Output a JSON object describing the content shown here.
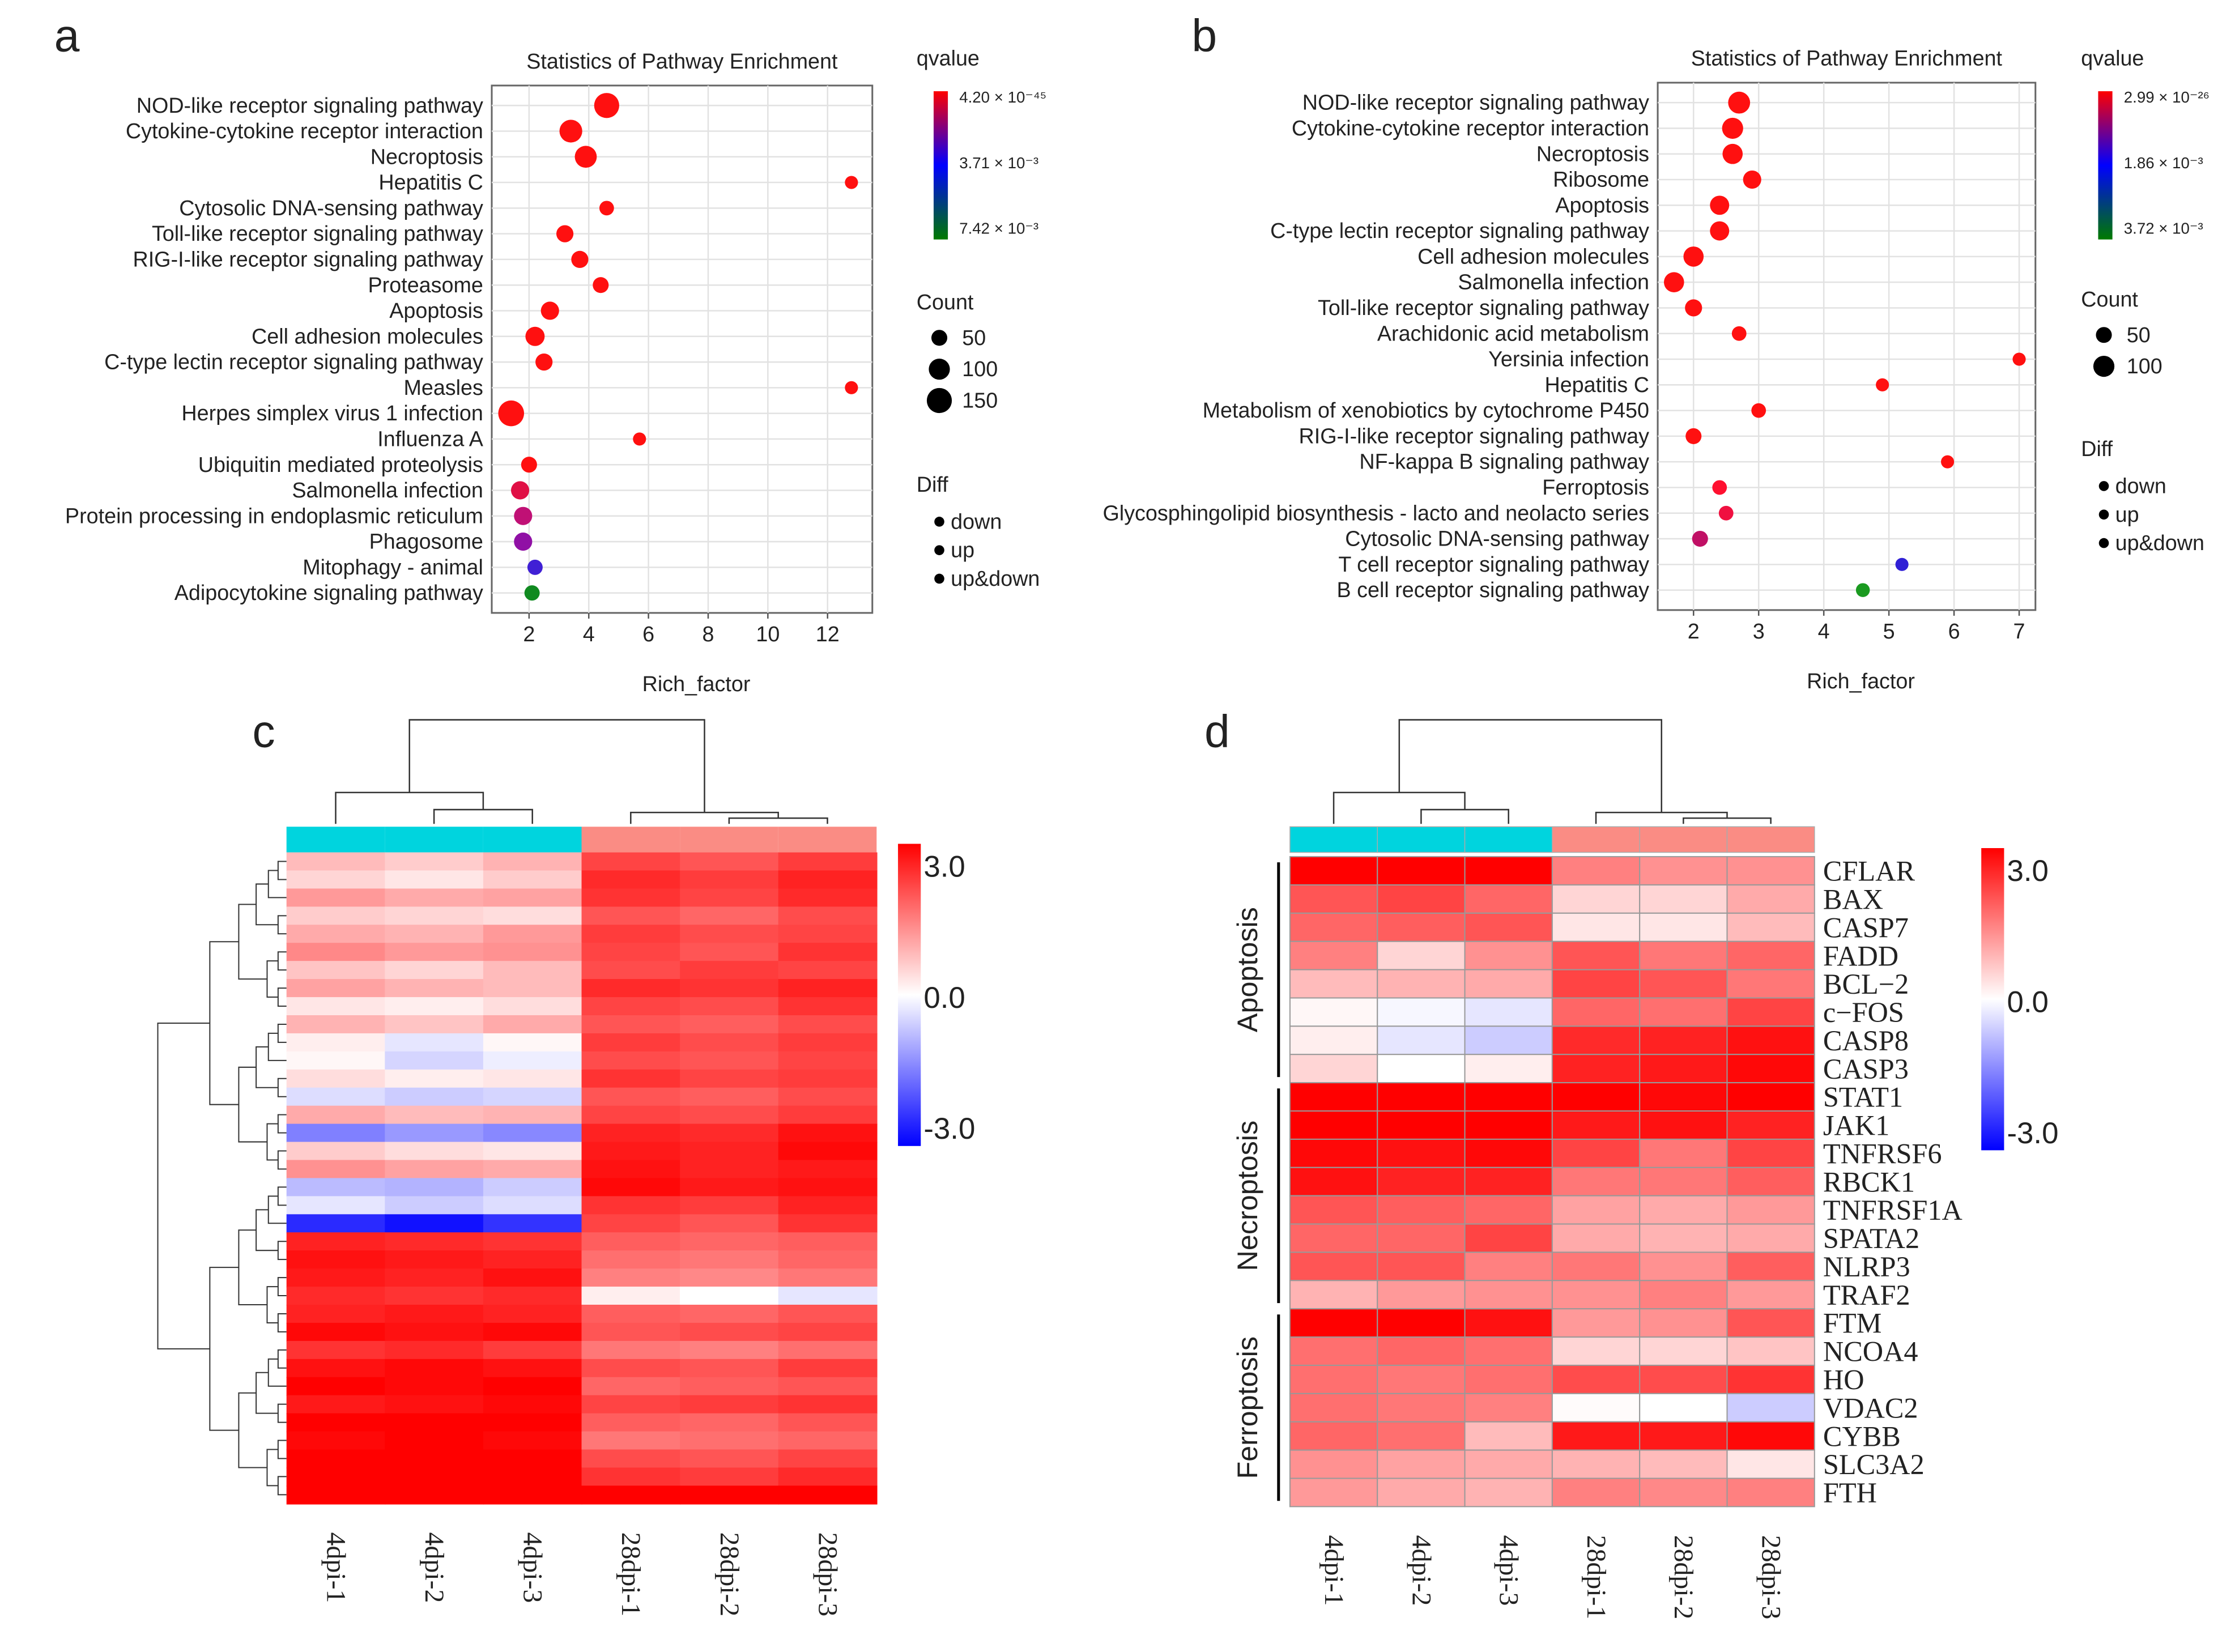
{
  "panel_letters": {
    "a": "a",
    "b": "b",
    "c": "c",
    "d": "d"
  },
  "chart_data": [
    {
      "id": "a",
      "type": "scatter",
      "title": "Statistics of Pathway Enrichment",
      "xlabel": "Rich_factor",
      "xlim": [
        0.75,
        13.5
      ],
      "xticks": [
        2,
        4,
        6,
        8,
        10,
        12
      ],
      "grid": true,
      "legend": {
        "qvalue_title": "qvalue",
        "qvalue_labels": [
          "4.20 × 10⁻⁴⁵",
          "3.71 × 10⁻³",
          "7.42 × 10⁻³"
        ],
        "qvalue_colors": [
          "#ff0000",
          "#0000ff",
          "#007a00"
        ],
        "count_title": "Count",
        "count_values": [
          50,
          100,
          150
        ],
        "count_labels": [
          "50",
          "100",
          "150"
        ],
        "diff_title": "Diff",
        "diff_labels": [
          "down",
          "up",
          "up&down"
        ],
        "placement": "right"
      },
      "points": [
        {
          "pathway": "NOD-like receptor signaling pathway",
          "rich_factor": 4.6,
          "count": 150,
          "color": "#ff1010"
        },
        {
          "pathway": "Cytokine-cytokine receptor interaction",
          "rich_factor": 3.4,
          "count": 120,
          "color": "#ff1010"
        },
        {
          "pathway": "Necroptosis",
          "rich_factor": 3.9,
          "count": 110,
          "color": "#ff1010"
        },
        {
          "pathway": "Hepatitis C",
          "rich_factor": 12.8,
          "count": 30,
          "color": "#ff1010"
        },
        {
          "pathway": "Cytosolic DNA-sensing pathway",
          "rich_factor": 4.6,
          "count": 40,
          "color": "#ff1010"
        },
        {
          "pathway": "Toll-like receptor signaling pathway",
          "rich_factor": 3.2,
          "count": 60,
          "color": "#ff1010"
        },
        {
          "pathway": "RIG-I-like receptor signaling pathway",
          "rich_factor": 3.7,
          "count": 60,
          "color": "#ff1010"
        },
        {
          "pathway": "Proteasome",
          "rich_factor": 4.4,
          "count": 50,
          "color": "#ff1010"
        },
        {
          "pathway": "Apoptosis",
          "rich_factor": 2.7,
          "count": 70,
          "color": "#ff1010"
        },
        {
          "pathway": "Cell adhesion molecules",
          "rich_factor": 2.2,
          "count": 80,
          "color": "#ff1010"
        },
        {
          "pathway": "C-type lectin receptor signaling pathway",
          "rich_factor": 2.5,
          "count": 60,
          "color": "#ff1010"
        },
        {
          "pathway": "Measles",
          "rich_factor": 12.8,
          "count": 30,
          "color": "#ff1010"
        },
        {
          "pathway": "Herpes simplex virus 1 infection",
          "rich_factor": 1.4,
          "count": 160,
          "color": "#ff1010"
        },
        {
          "pathway": "Influenza A",
          "rich_factor": 5.7,
          "count": 30,
          "color": "#ff1010"
        },
        {
          "pathway": "Ubiquitin mediated proteolysis",
          "rich_factor": 2.0,
          "count": 50,
          "color": "#ff1010"
        },
        {
          "pathway": "Salmonella infection",
          "rich_factor": 1.7,
          "count": 70,
          "color": "#e01045"
        },
        {
          "pathway": "Protein processing in endoplasmic reticulum",
          "rich_factor": 1.8,
          "count": 70,
          "color": "#c01075"
        },
        {
          "pathway": "Phagosome",
          "rich_factor": 1.8,
          "count": 70,
          "color": "#9010a5"
        },
        {
          "pathway": "Mitophagy - animal",
          "rich_factor": 2.2,
          "count": 45,
          "color": "#4020d5"
        },
        {
          "pathway": "Adipocytokine signaling pathway",
          "rich_factor": 2.1,
          "count": 45,
          "color": "#108a20"
        }
      ]
    },
    {
      "id": "b",
      "type": "scatter",
      "title": "Statistics of Pathway Enrichment",
      "xlabel": "Rich_factor",
      "xlim": [
        1.45,
        7.25
      ],
      "xticks": [
        2,
        3,
        4,
        5,
        6,
        7
      ],
      "grid": true,
      "legend": {
        "qvalue_title": "qvalue",
        "qvalue_labels": [
          "2.99 × 10⁻²⁶",
          "1.86 × 10⁻³",
          "3.72 × 10⁻³"
        ],
        "qvalue_colors": [
          "#ff0000",
          "#0000ff",
          "#007a00"
        ],
        "count_title": "Count",
        "count_values": [
          50,
          100
        ],
        "count_labels": [
          "50",
          "100"
        ],
        "diff_title": "Diff",
        "diff_labels": [
          "down",
          "up",
          "up&down"
        ],
        "placement": "right"
      },
      "points": [
        {
          "pathway": "NOD-like receptor signaling pathway",
          "rich_factor": 2.7,
          "count": 110,
          "color": "#ff1010"
        },
        {
          "pathway": "Cytokine-cytokine receptor interaction",
          "rich_factor": 2.6,
          "count": 100,
          "color": "#ff1010"
        },
        {
          "pathway": "Necroptosis",
          "rich_factor": 2.6,
          "count": 90,
          "color": "#ff1010"
        },
        {
          "pathway": "Ribosome",
          "rich_factor": 2.9,
          "count": 70,
          "color": "#ff1010"
        },
        {
          "pathway": "Apoptosis",
          "rich_factor": 2.4,
          "count": 80,
          "color": "#ff1010"
        },
        {
          "pathway": "C-type lectin receptor signaling pathway",
          "rich_factor": 2.4,
          "count": 80,
          "color": "#ff1010"
        },
        {
          "pathway": "Cell adhesion molecules",
          "rich_factor": 2.0,
          "count": 90,
          "color": "#ff1010"
        },
        {
          "pathway": "Salmonella infection",
          "rich_factor": 1.7,
          "count": 90,
          "color": "#ff1010"
        },
        {
          "pathway": "Toll-like receptor signaling pathway",
          "rich_factor": 2.0,
          "count": 60,
          "color": "#ff1010"
        },
        {
          "pathway": "Arachidonic acid metabolism",
          "rich_factor": 2.7,
          "count": 40,
          "color": "#ff1010"
        },
        {
          "pathway": "Yersinia infection",
          "rich_factor": 7.0,
          "count": 30,
          "color": "#ff1010"
        },
        {
          "pathway": "Hepatitis C",
          "rich_factor": 4.9,
          "count": 30,
          "color": "#ff1010"
        },
        {
          "pathway": "Metabolism of xenobiotics by cytochrome P450",
          "rich_factor": 3.0,
          "count": 40,
          "color": "#ff1010"
        },
        {
          "pathway": "RIG-I-like receptor signaling pathway",
          "rich_factor": 2.0,
          "count": 50,
          "color": "#ff1010"
        },
        {
          "pathway": "NF-kappa B signaling pathway",
          "rich_factor": 5.9,
          "count": 30,
          "color": "#ff1010"
        },
        {
          "pathway": "Ferroptosis",
          "rich_factor": 2.4,
          "count": 40,
          "color": "#ff1030"
        },
        {
          "pathway": "Glycosphingolipid biosynthesis - lacto and neolacto series",
          "rich_factor": 2.5,
          "count": 40,
          "color": "#f01040"
        },
        {
          "pathway": "Cytosolic DNA-sensing pathway",
          "rich_factor": 2.1,
          "count": 50,
          "color": "#c01065"
        },
        {
          "pathway": "T cell receptor signaling pathway",
          "rich_factor": 5.2,
          "count": 30,
          "color": "#3020d5"
        },
        {
          "pathway": "B cell receptor signaling pathway",
          "rich_factor": 4.6,
          "count": 35,
          "color": "#1a9a20"
        }
      ]
    },
    {
      "id": "c",
      "type": "heatmap",
      "columns": [
        "4dpi-1",
        "4dpi-2",
        "4dpi-3",
        "28dpi-1",
        "28dpi-2",
        "28dpi-3"
      ],
      "group_colors": [
        "#00d4de",
        "#00d4de",
        "#00d4de",
        "#fa8c84",
        "#fa8c84",
        "#fa8c84"
      ],
      "scale": {
        "min": -3.0,
        "max": 3.0,
        "labels": [
          "3.0",
          "0.0",
          "-3.0"
        ],
        "low_color": "#0000ff",
        "mid_color": "#ffffff",
        "high_color": "#ff0000"
      },
      "rows": [
        [
          0.8,
          0.6,
          0.9,
          2.2,
          2.0,
          2.3
        ],
        [
          0.5,
          0.3,
          0.6,
          2.5,
          2.3,
          2.6
        ],
        [
          1.2,
          1.0,
          1.1,
          2.4,
          2.2,
          2.5
        ],
        [
          0.6,
          0.5,
          0.4,
          2.0,
          1.8,
          2.1
        ],
        [
          1.0,
          0.9,
          1.2,
          2.3,
          2.1,
          2.2
        ],
        [
          1.4,
          1.2,
          1.3,
          2.2,
          2.0,
          2.4
        ],
        [
          0.7,
          0.5,
          0.8,
          2.1,
          2.3,
          2.2
        ],
        [
          1.1,
          0.9,
          0.8,
          2.5,
          2.4,
          2.6
        ],
        [
          0.3,
          0.2,
          0.4,
          2.2,
          2.1,
          2.4
        ],
        [
          0.9,
          0.7,
          1.0,
          2.0,
          1.9,
          2.1
        ],
        [
          0.2,
          -0.3,
          0.1,
          2.3,
          2.1,
          2.3
        ],
        [
          0.1,
          -0.5,
          -0.2,
          2.1,
          2.0,
          2.2
        ],
        [
          0.4,
          0.2,
          0.3,
          2.4,
          2.2,
          2.3
        ],
        [
          -0.4,
          -0.6,
          -0.5,
          2.0,
          1.9,
          2.1
        ],
        [
          1.0,
          0.8,
          0.9,
          2.2,
          2.1,
          2.3
        ],
        [
          -1.5,
          -1.2,
          -1.4,
          2.6,
          2.5,
          2.8
        ],
        [
          0.6,
          0.4,
          0.3,
          2.7,
          2.6,
          2.9
        ],
        [
          1.3,
          1.1,
          1.0,
          2.8,
          2.6,
          2.7
        ],
        [
          -0.8,
          -0.9,
          -0.6,
          2.9,
          2.7,
          2.8
        ],
        [
          -0.3,
          -0.6,
          -0.4,
          2.4,
          2.3,
          2.6
        ],
        [
          -2.5,
          -2.8,
          -2.4,
          2.2,
          2.0,
          2.4
        ],
        [
          2.6,
          2.5,
          2.4,
          1.9,
          1.8,
          1.9
        ],
        [
          2.8,
          2.7,
          2.6,
          1.7,
          1.6,
          1.8
        ],
        [
          2.7,
          2.6,
          2.8,
          1.5,
          1.4,
          1.6
        ],
        [
          2.5,
          2.4,
          2.5,
          0.2,
          0.0,
          -0.3
        ],
        [
          2.6,
          2.7,
          2.6,
          1.9,
          1.8,
          2.0
        ],
        [
          2.9,
          2.8,
          2.9,
          2.0,
          2.1,
          2.2
        ],
        [
          2.4,
          2.5,
          2.3,
          1.6,
          1.5,
          1.7
        ],
        [
          2.8,
          2.9,
          2.8,
          2.1,
          2.0,
          2.3
        ],
        [
          3.0,
          2.9,
          3.0,
          1.8,
          1.9,
          2.0
        ],
        [
          2.7,
          2.8,
          2.9,
          2.2,
          2.3,
          2.4
        ],
        [
          3.0,
          3.0,
          3.0,
          1.9,
          1.8,
          2.0
        ],
        [
          2.9,
          3.0,
          2.9,
          1.6,
          1.7,
          1.8
        ],
        [
          3.0,
          3.0,
          3.0,
          2.1,
          2.0,
          2.2
        ],
        [
          3.0,
          3.0,
          3.0,
          2.4,
          2.3,
          2.5
        ],
        [
          3.0,
          3.0,
          3.0,
          3.0,
          3.0,
          3.0
        ]
      ]
    },
    {
      "id": "d",
      "type": "heatmap",
      "columns": [
        "4dpi-1",
        "4dpi-2",
        "4dpi-3",
        "28dpi-1",
        "28dpi-2",
        "28dpi-3"
      ],
      "group_colors": [
        "#00d4de",
        "#00d4de",
        "#00d4de",
        "#fa8c84",
        "#fa8c84",
        "#fa8c84"
      ],
      "scale": {
        "min": -3.0,
        "max": 3.0,
        "labels": [
          "3.0",
          "0.0",
          "-3.0"
        ],
        "low_color": "#0000ff",
        "mid_color": "#ffffff",
        "high_color": "#ff0000"
      },
      "row_groups": [
        {
          "label": "Apoptosis",
          "genes": 8
        },
        {
          "label": "Necroptosis",
          "genes": 8
        },
        {
          "label": "Ferroptosis",
          "genes": 7
        }
      ],
      "genes": [
        "CFLAR",
        "BAX",
        "CASP7",
        "FADD",
        "BCL−2",
        "c−FOS",
        "CASP8",
        "CASP3",
        "STAT1",
        "JAK1",
        "TNFRSF6",
        "RBCK1",
        "TNFRSF1A",
        "SPATA2",
        "NLRP3",
        "TRAF2",
        "FTM",
        "NCOA4",
        "HO",
        "VDAC2",
        "CYBB",
        "SLC3A2",
        "FTH"
      ],
      "values": [
        [
          3.0,
          3.0,
          3.0,
          1.5,
          1.3,
          1.3
        ],
        [
          2.0,
          2.2,
          1.8,
          0.5,
          0.5,
          1.0
        ],
        [
          1.8,
          1.9,
          2.0,
          0.3,
          0.3,
          0.8
        ],
        [
          1.5,
          0.5,
          1.3,
          2.0,
          1.6,
          1.8
        ],
        [
          0.8,
          0.9,
          1.0,
          2.2,
          2.0,
          1.6
        ],
        [
          0.1,
          -0.1,
          -0.3,
          1.8,
          1.7,
          2.2
        ],
        [
          0.2,
          -0.3,
          -0.6,
          2.5,
          2.6,
          2.8
        ],
        [
          0.5,
          0.0,
          0.2,
          2.6,
          2.7,
          2.9
        ],
        [
          3.0,
          3.0,
          3.0,
          3.0,
          2.9,
          3.0
        ],
        [
          3.0,
          3.0,
          3.0,
          2.7,
          2.8,
          2.6
        ],
        [
          2.9,
          2.8,
          2.9,
          2.2,
          1.6,
          2.2
        ],
        [
          2.8,
          2.6,
          2.6,
          1.6,
          1.6,
          1.9
        ],
        [
          2.0,
          1.9,
          1.8,
          1.1,
          1.0,
          1.2
        ],
        [
          1.8,
          1.8,
          2.2,
          1.0,
          0.9,
          1.0
        ],
        [
          2.0,
          2.0,
          1.5,
          1.6,
          1.3,
          1.9
        ],
        [
          0.9,
          1.2,
          1.3,
          1.3,
          1.5,
          1.2
        ],
        [
          3.0,
          3.0,
          2.8,
          1.2,
          1.3,
          2.0
        ],
        [
          1.7,
          1.8,
          1.7,
          0.5,
          0.5,
          0.7
        ],
        [
          1.7,
          1.6,
          1.7,
          2.1,
          2.1,
          2.4
        ],
        [
          1.7,
          1.6,
          1.5,
          0.05,
          0.0,
          -0.6
        ],
        [
          1.8,
          1.7,
          0.8,
          2.7,
          2.7,
          2.9
        ],
        [
          1.3,
          1.1,
          1.0,
          0.9,
          0.8,
          0.3
        ],
        [
          1.2,
          1.0,
          0.9,
          1.5,
          1.4,
          1.5
        ]
      ]
    }
  ]
}
